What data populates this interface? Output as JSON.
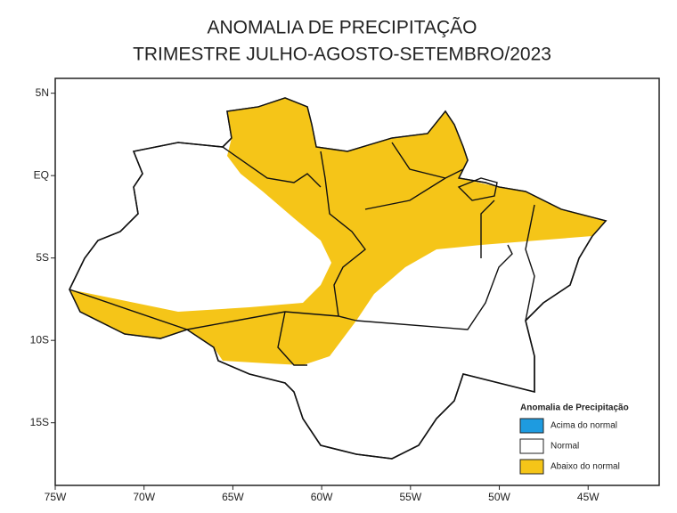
{
  "map": {
    "title": [
      "ANOMALIA DE PRECIPITAÇÃO",
      "TRIMESTRE JULHO-AGOSTO-SETEMBRO/2023"
    ],
    "lonlim": [
      -75,
      -41
    ],
    "latlim": [
      -18.8,
      5.9
    ],
    "lon_ticks": [
      {
        "value": -75,
        "label": "75W"
      },
      {
        "value": -70,
        "label": "70W"
      },
      {
        "value": -65,
        "label": "65W"
      },
      {
        "value": -60,
        "label": "60W"
      },
      {
        "value": -55,
        "label": "55W"
      },
      {
        "value": -50,
        "label": "50W"
      },
      {
        "value": -45,
        "label": "45W"
      }
    ],
    "lat_ticks": [
      {
        "value": 5,
        "label": "5N"
      },
      {
        "value": 0,
        "label": "EQ"
      },
      {
        "value": -5,
        "label": "5S"
      },
      {
        "value": -10,
        "label": "10S"
      },
      {
        "value": -15,
        "label": "15S"
      }
    ],
    "legend": {
      "title": "Anomalia de Precipitação",
      "entries": [
        {
          "name": "Acima do normal",
          "color": "#1e9be0"
        },
        {
          "name": "Normal",
          "color": "#ffffff"
        },
        {
          "name": "Abaixo do normal",
          "color": "#f5c518"
        }
      ]
    }
  }
}
